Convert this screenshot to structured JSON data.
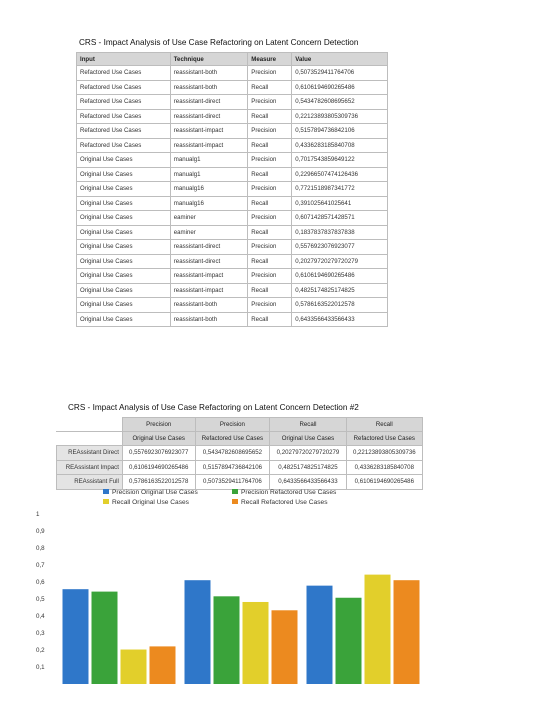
{
  "table1": {
    "title": "CRS - Impact Analysis of Use Case Refactoring on Latent Concern Detection",
    "headers": [
      "Input",
      "Technique",
      "Measure",
      "Value"
    ],
    "rows": [
      [
        "Refactored Use Cases",
        "reassistant-both",
        "Precision",
        "0,5073529411764706"
      ],
      [
        "Refactored Use Cases",
        "reassistant-both",
        "Recall",
        "0,6106194690265486"
      ],
      [
        "Refactored Use Cases",
        "reassistant-direct",
        "Precision",
        "0,5434782608695652"
      ],
      [
        "Refactored Use Cases",
        "reassistant-direct",
        "Recall",
        "0,22123893805309736"
      ],
      [
        "Refactored Use Cases",
        "reassistant-impact",
        "Precision",
        "0,5157894736842106"
      ],
      [
        "Refactored Use Cases",
        "reassistant-impact",
        "Recall",
        "0,4336283185840708"
      ],
      [
        "Original Use Cases",
        "manualg1",
        "Precision",
        "0,7017543859649122"
      ],
      [
        "Original Use Cases",
        "manualg1",
        "Recall",
        "0,22966507474126436"
      ],
      [
        "Original Use Cases",
        "manualg16",
        "Precision",
        "0,7721518987341772"
      ],
      [
        "Original Use Cases",
        "manualg16",
        "Recall",
        "0,391025641025641"
      ],
      [
        "Original Use Cases",
        "eaminer",
        "Precision",
        "0,6071428571428571"
      ],
      [
        "Original Use Cases",
        "eaminer",
        "Recall",
        "0,1837837837837838"
      ],
      [
        "Original Use Cases",
        "reassistant-direct",
        "Precision",
        "0,5576923076923077"
      ],
      [
        "Original Use Cases",
        "reassistant-direct",
        "Recall",
        "0,20279720279720279"
      ],
      [
        "Original Use Cases",
        "reassistant-impact",
        "Precision",
        "0,6106194690265486"
      ],
      [
        "Original Use Cases",
        "reassistant-impact",
        "Recall",
        "0,4825174825174825"
      ],
      [
        "Original Use Cases",
        "reassistant-both",
        "Precision",
        "0,5786163522012578"
      ],
      [
        "Original Use Cases",
        "reassistant-both",
        "Recall",
        "0,6433566433566433"
      ]
    ]
  },
  "table2": {
    "title": "CRS - Impact Analysis of Use Case Refactoring on Latent Concern Detection #2",
    "group_headers": [
      "Precision",
      "Precision",
      "Recall",
      "Recall"
    ],
    "sub_headers": [
      "Original Use Cases",
      "Refactored Use Cases",
      "Original Use Cases",
      "Refactored Use Cases"
    ],
    "rows": [
      {
        "label": "REAssistant Direct",
        "cells": [
          "0,5576923076923077",
          "0,5434782608695652",
          "0,20279720279720279",
          "0,22123893805309736"
        ]
      },
      {
        "label": "REAssistant Impact",
        "cells": [
          "0,6106194690265486",
          "0,5157894736842106",
          "0,4825174825174825",
          "0,4336283185840708"
        ]
      },
      {
        "label": "REAssistant Full",
        "cells": [
          "0,5786163522012578",
          "0,5073529411764706",
          "0,6433566433566433",
          "0,6106194690265486"
        ]
      }
    ]
  },
  "chart_data": {
    "type": "bar",
    "title": "",
    "xlabel": "",
    "ylabel": "",
    "categories": [
      "",
      "",
      ""
    ],
    "yticks": [
      "0,1",
      "0,2",
      "0,3",
      "0,4",
      "0,5",
      "0,6",
      "0,7",
      "0,8",
      "0,9",
      "1"
    ],
    "ylim": [
      0,
      1
    ],
    "grid": false,
    "legend": "top",
    "series": [
      {
        "name": "Precision Original Use Cases",
        "color": "#2f77c9",
        "values": [
          0.5577,
          0.6106,
          0.5786
        ]
      },
      {
        "name": "Precision Refactored Use Cases",
        "color": "#3aa33a",
        "values": [
          0.5435,
          0.5158,
          0.5074
        ]
      },
      {
        "name": "Recall Original Use Cases",
        "color": "#e2cf2b",
        "values": [
          0.2028,
          0.4825,
          0.6434
        ]
      },
      {
        "name": "Recall Refactored Use Cases",
        "color": "#ec8a1f",
        "values": [
          0.2212,
          0.4336,
          0.6106
        ]
      }
    ]
  }
}
